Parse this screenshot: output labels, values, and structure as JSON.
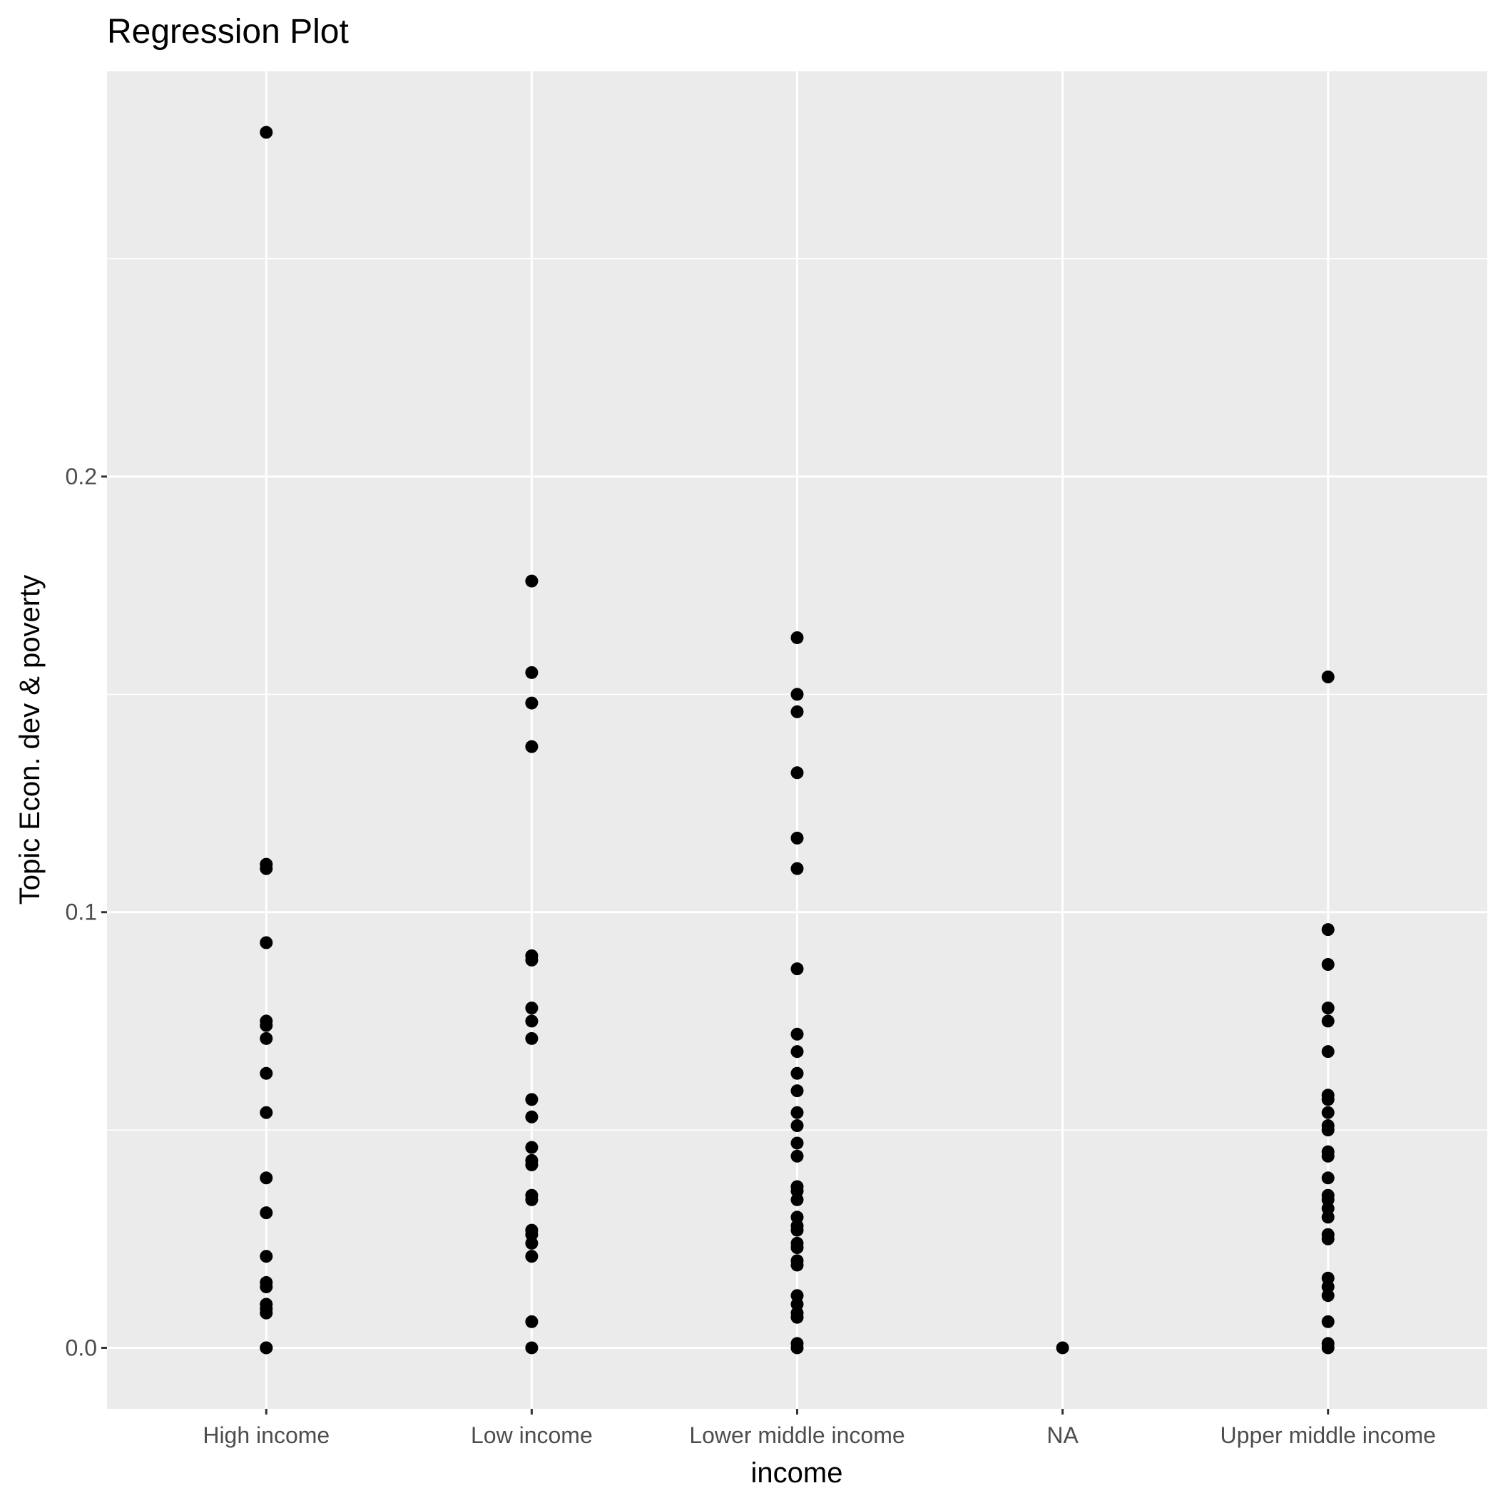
{
  "chart_data": {
    "type": "scatter",
    "title": "Regression Plot",
    "xlabel": "income",
    "ylabel": "Topic Econ. dev & poverty",
    "categories": [
      "High income",
      "Low income",
      "Lower middle income",
      "NA",
      "Upper middle income"
    ],
    "y_ticks": [
      0.0,
      0.1,
      0.2
    ],
    "y_tick_labels": [
      "0.0",
      "0.1",
      "0.2"
    ],
    "ylim": [
      -0.014,
      0.293
    ],
    "grid": true,
    "legend": "none",
    "colors": {
      "panel": "#ebebeb",
      "grid": "#ffffff",
      "point": "#000000",
      "tick": "#333333"
    },
    "series": [
      {
        "category": "High income",
        "values": [
          0.279,
          0.111,
          0.11,
          0.093,
          0.075,
          0.074,
          0.071,
          0.063,
          0.054,
          0.039,
          0.031,
          0.021,
          0.015,
          0.014,
          0.01,
          0.009,
          0.008,
          0.0,
          0.0
        ]
      },
      {
        "category": "Low income",
        "values": [
          0.176,
          0.155,
          0.148,
          0.138,
          0.09,
          0.089,
          0.078,
          0.075,
          0.071,
          0.057,
          0.053,
          0.046,
          0.043,
          0.042,
          0.035,
          0.034,
          0.027,
          0.026,
          0.024,
          0.021,
          0.006,
          0.0
        ]
      },
      {
        "category": "Lower middle income",
        "values": [
          0.163,
          0.15,
          0.146,
          0.132,
          0.117,
          0.11,
          0.087,
          0.072,
          0.068,
          0.063,
          0.059,
          0.054,
          0.051,
          0.047,
          0.044,
          0.037,
          0.036,
          0.034,
          0.03,
          0.028,
          0.027,
          0.024,
          0.023,
          0.02,
          0.019,
          0.012,
          0.01,
          0.008,
          0.007,
          0.001,
          0.0
        ]
      },
      {
        "category": "NA",
        "values": [
          0.0
        ]
      },
      {
        "category": "Upper middle income",
        "values": [
          0.154,
          0.096,
          0.088,
          0.078,
          0.075,
          0.068,
          0.058,
          0.057,
          0.054,
          0.051,
          0.05,
          0.045,
          0.044,
          0.039,
          0.035,
          0.034,
          0.032,
          0.03,
          0.026,
          0.025,
          0.016,
          0.014,
          0.012,
          0.006,
          0.001,
          0.0
        ]
      }
    ]
  }
}
